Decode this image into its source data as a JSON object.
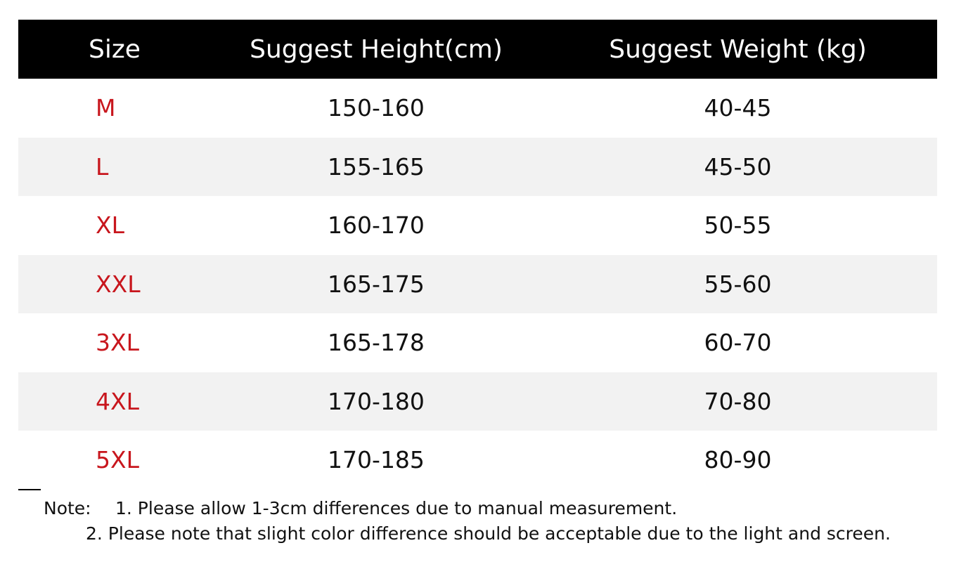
{
  "table": {
    "headers": [
      "Size",
      "Suggest Height(cm)",
      "Suggest Weight (kg)"
    ],
    "rows": [
      {
        "size": "M",
        "height": "150-160",
        "weight": "40-45"
      },
      {
        "size": "L",
        "height": "155-165",
        "weight": "45-50"
      },
      {
        "size": "XL",
        "height": "160-170",
        "weight": "50-55"
      },
      {
        "size": "XXL",
        "height": "165-175",
        "weight": "55-60"
      },
      {
        "size": "3XL",
        "height": "165-178",
        "weight": "60-70"
      },
      {
        "size": "4XL",
        "height": "170-180",
        "weight": "70-80"
      },
      {
        "size": "5XL",
        "height": "170-185",
        "weight": "80-90"
      }
    ]
  },
  "note": {
    "label": "Note:",
    "line1": "1. Please allow 1-3cm differences due to manual measurement.",
    "line2": "2. Please note that slight color difference should be acceptable due to the light and screen."
  },
  "colors": {
    "header_bg": "#000000",
    "header_text": "#ffffff",
    "size_text": "#c8161d",
    "alt_row_bg": "#f2f2f2"
  }
}
